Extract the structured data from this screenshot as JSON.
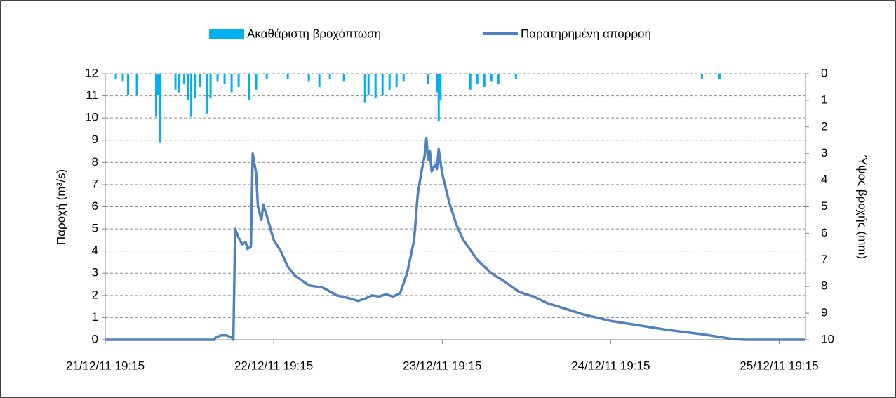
{
  "chart_data": {
    "type": "bar-line",
    "xlim": [
      "21/12/11 19:15",
      "25/12/11 23:00"
    ],
    "xticks": [
      "21/12/11 19:15",
      "22/12/11 19:15",
      "23/12/11 19:15",
      "24/12/11 19:15",
      "25/12/11 19:15"
    ],
    "ylim": [
      0,
      12
    ],
    "yticks": [
      0,
      1,
      2,
      3,
      4,
      5,
      6,
      7,
      8,
      9,
      10,
      11,
      12
    ],
    "y2lim": [
      0,
      10
    ],
    "y2ticks": [
      0,
      1,
      2,
      3,
      4,
      5,
      6,
      7,
      8,
      9,
      10
    ],
    "y2_inverted": true,
    "ylabel": "Παροχή (m³/s)",
    "y2label": "Ύψος βροχής (mm)",
    "grid": true,
    "legend": "top",
    "series": [
      {
        "name": "Ακαθάριστη βροχόπτωση",
        "color": "#00b0f0",
        "axis": "y2",
        "kind": "bar",
        "x": [
          "21/12/11 20:45",
          "21/12/11 21:45",
          "21/12/11 22:30",
          "21/12/11 23:45",
          "22/12/11 02:30",
          "22/12/11 02:45",
          "22/12/11 03:00",
          "22/12/11 05:15",
          "22/12/11 05:45",
          "22/12/11 06:30",
          "22/12/11 07:00",
          "22/12/11 07:30",
          "22/12/11 08:00",
          "22/12/11 08:45",
          "22/12/11 09:45",
          "22/12/11 10:15",
          "22/12/11 11:15",
          "22/12/11 12:15",
          "22/12/11 13:15",
          "22/12/11 14:15",
          "22/12/11 15:45",
          "22/12/11 16:45",
          "22/12/11 18:15",
          "22/12/11 21:15",
          "23/12/11 00:15",
          "23/12/11 01:45",
          "23/12/11 03:15",
          "23/12/11 05:15",
          "23/12/11 08:15",
          "23/12/11 08:45",
          "23/12/11 09:45",
          "23/12/11 10:45",
          "23/12/11 11:45",
          "23/12/11 12:45",
          "23/12/11 13:45",
          "23/12/11 17:15",
          "23/12/11 18:30",
          "23/12/11 18:45",
          "23/12/11 19:00",
          "23/12/11 23:15",
          "24/12/11 00:15",
          "24/12/11 01:15",
          "24/12/11 02:15",
          "24/12/11 03:15",
          "24/12/11 05:45",
          "25/12/11 08:15",
          "25/12/11 10:45"
        ],
        "values": [
          0.2,
          0.3,
          0.8,
          0.8,
          1.6,
          0.8,
          2.6,
          0.6,
          0.7,
          0.4,
          1.0,
          1.6,
          0.9,
          0.5,
          1.5,
          0.9,
          0.3,
          0.4,
          0.7,
          0.5,
          1.0,
          0.6,
          0.2,
          0.2,
          0.3,
          0.5,
          0.2,
          0.3,
          1.1,
          0.8,
          0.9,
          0.8,
          0.6,
          0.5,
          0.3,
          0.4,
          0.7,
          1.8,
          1.0,
          0.6,
          0.4,
          0.5,
          0.3,
          0.4,
          0.2,
          0.2,
          0.2
        ]
      },
      {
        "name": "Παρατηρημένη απορροή",
        "color": "#4f81bd",
        "axis": "y",
        "kind": "line",
        "x": [
          "21/12/11 19:15",
          "22/12/11 10:45",
          "22/12/11 11:00",
          "22/12/11 11:45",
          "22/12/11 12:30",
          "22/12/11 13:15",
          "22/12/11 13:30",
          "22/12/11 13:45",
          "22/12/11 14:15",
          "22/12/11 14:45",
          "22/12/11 15:15",
          "22/12/11 15:30",
          "22/12/11 16:00",
          "22/12/11 16:15",
          "22/12/11 16:45",
          "22/12/11 17:00",
          "22/12/11 17:30",
          "22/12/11 17:45",
          "22/12/11 18:15",
          "22/12/11 19:15",
          "22/12/11 20:15",
          "22/12/11 21:15",
          "22/12/11 22:15",
          "23/12/11 00:15",
          "23/12/11 02:15",
          "23/12/11 04:15",
          "23/12/11 06:15",
          "23/12/11 07:15",
          "23/12/11 08:15",
          "23/12/11 09:15",
          "23/12/11 10:15",
          "23/12/11 11:15",
          "23/12/11 12:15",
          "23/12/11 13:15",
          "23/12/11 14:15",
          "23/12/11 15:15",
          "23/12/11 15:45",
          "23/12/11 16:15",
          "23/12/11 16:45",
          "23/12/11 17:00",
          "23/12/11 17:15",
          "23/12/11 17:30",
          "23/12/11 17:45",
          "23/12/11 18:15",
          "23/12/11 18:30",
          "23/12/11 18:45",
          "23/12/11 19:15",
          "23/12/11 20:15",
          "23/12/11 21:15",
          "23/12/11 22:15",
          "24/12/11 00:15",
          "24/12/11 02:15",
          "24/12/11 04:15",
          "24/12/11 06:15",
          "24/12/11 08:15",
          "24/12/11 10:15",
          "24/12/11 12:15",
          "24/12/11 15:15",
          "24/12/11 19:15",
          "24/12/11 22:15",
          "25/12/11 03:15",
          "25/12/11 08:15",
          "25/12/11 12:15",
          "25/12/11 14:15",
          "25/12/11 23:00"
        ],
        "values": [
          0,
          0,
          0.1,
          0.2,
          0.2,
          0.1,
          0,
          5.0,
          4.6,
          4.3,
          4.4,
          4.1,
          4.2,
          8.4,
          7.5,
          6.0,
          5.4,
          6.1,
          5.6,
          4.5,
          4.0,
          3.3,
          2.9,
          2.45,
          2.35,
          2.0,
          1.85,
          1.75,
          1.85,
          2.0,
          1.95,
          2.05,
          1.95,
          2.1,
          3.0,
          4.5,
          6.5,
          7.5,
          8.3,
          9.1,
          8.1,
          8.5,
          7.6,
          7.9,
          7.7,
          8.6,
          7.5,
          6.2,
          5.2,
          4.5,
          3.6,
          3.0,
          2.6,
          2.15,
          1.95,
          1.65,
          1.45,
          1.15,
          0.85,
          0.7,
          0.45,
          0.25,
          0.05,
          0,
          0
        ]
      }
    ]
  }
}
